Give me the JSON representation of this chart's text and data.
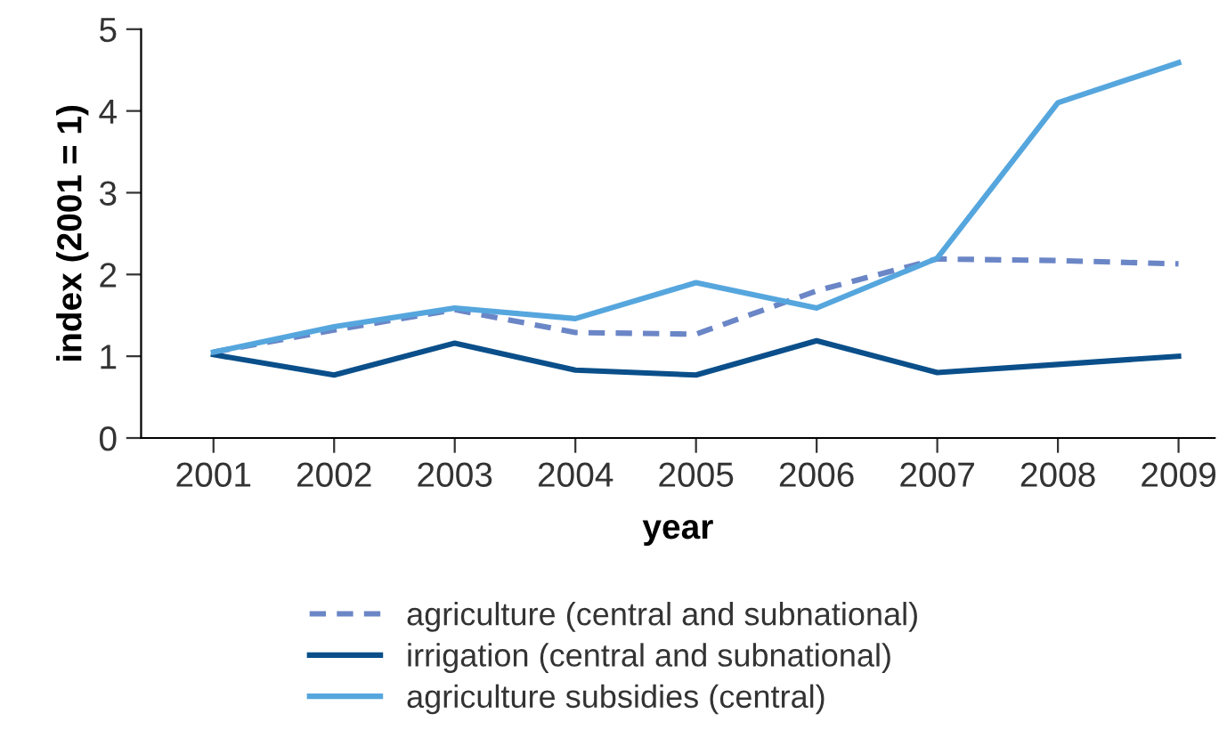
{
  "chart_data": {
    "type": "line",
    "xlabel": "year",
    "ylabel": "index (2001 = 1)",
    "x": [
      2001,
      2002,
      2003,
      2004,
      2005,
      2006,
      2007,
      2008,
      2009
    ],
    "xlim": [
      2000.4,
      2009.3
    ],
    "xticks": [
      2001,
      2002,
      2003,
      2004,
      2005,
      2006,
      2007,
      2008,
      2009
    ],
    "ylim": [
      0,
      5
    ],
    "yticks": [
      0,
      1,
      2,
      3,
      4,
      5
    ],
    "grid": false,
    "legend": "bottom",
    "marker": "none",
    "series": [
      {
        "name": "agriculture (central and subnational)",
        "color": "#6b86c6",
        "line_style": "dashed",
        "values": [
          1.05,
          1.32,
          1.57,
          1.29,
          1.27,
          1.8,
          2.19,
          2.17,
          2.13
        ]
      },
      {
        "name": "irrigation (central and subnational)",
        "color": "#0a4f8a",
        "line_style": "solid",
        "values": [
          1.02,
          0.77,
          1.16,
          0.83,
          0.77,
          1.19,
          0.8,
          0.9,
          1.0
        ]
      },
      {
        "name": "agriculture subsidies (central)",
        "color": "#56a6de",
        "line_style": "solid",
        "values": [
          1.05,
          1.36,
          1.59,
          1.46,
          1.9,
          1.59,
          2.2,
          4.1,
          4.59
        ]
      }
    ]
  }
}
